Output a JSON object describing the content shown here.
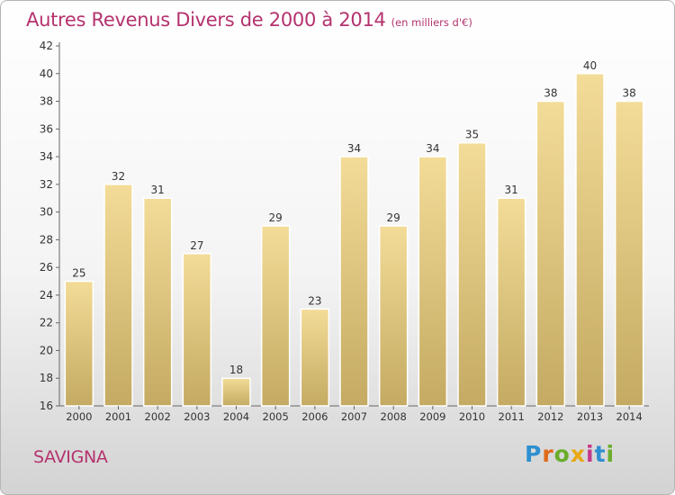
{
  "title": "Autres Revenus Divers de 2000 à 2014",
  "subtitle": "(en milliers d'€)",
  "commune": "SAVIGNA",
  "logo": "Proxiti",
  "colors": {
    "title": "#b5326e",
    "bar_light": "#f3dc98",
    "bar_dark": "#c4aa62",
    "axis": "#666666"
  },
  "chart_data": {
    "type": "bar",
    "title": "Autres Revenus Divers de 2000 à 2014",
    "subtitle": "(en milliers d'€)",
    "categories": [
      "2000",
      "2001",
      "2002",
      "2003",
      "2004",
      "2005",
      "2006",
      "2007",
      "2008",
      "2009",
      "2010",
      "2011",
      "2012",
      "2013",
      "2014"
    ],
    "values": [
      25,
      32,
      31,
      27,
      18,
      29,
      23,
      34,
      29,
      34,
      35,
      31,
      38,
      40,
      38
    ],
    "ylim": [
      16,
      42
    ],
    "yticks": [
      16,
      18,
      20,
      22,
      24,
      26,
      28,
      30,
      32,
      34,
      36,
      38,
      40,
      42
    ],
    "grid": false,
    "data_labels": true
  }
}
